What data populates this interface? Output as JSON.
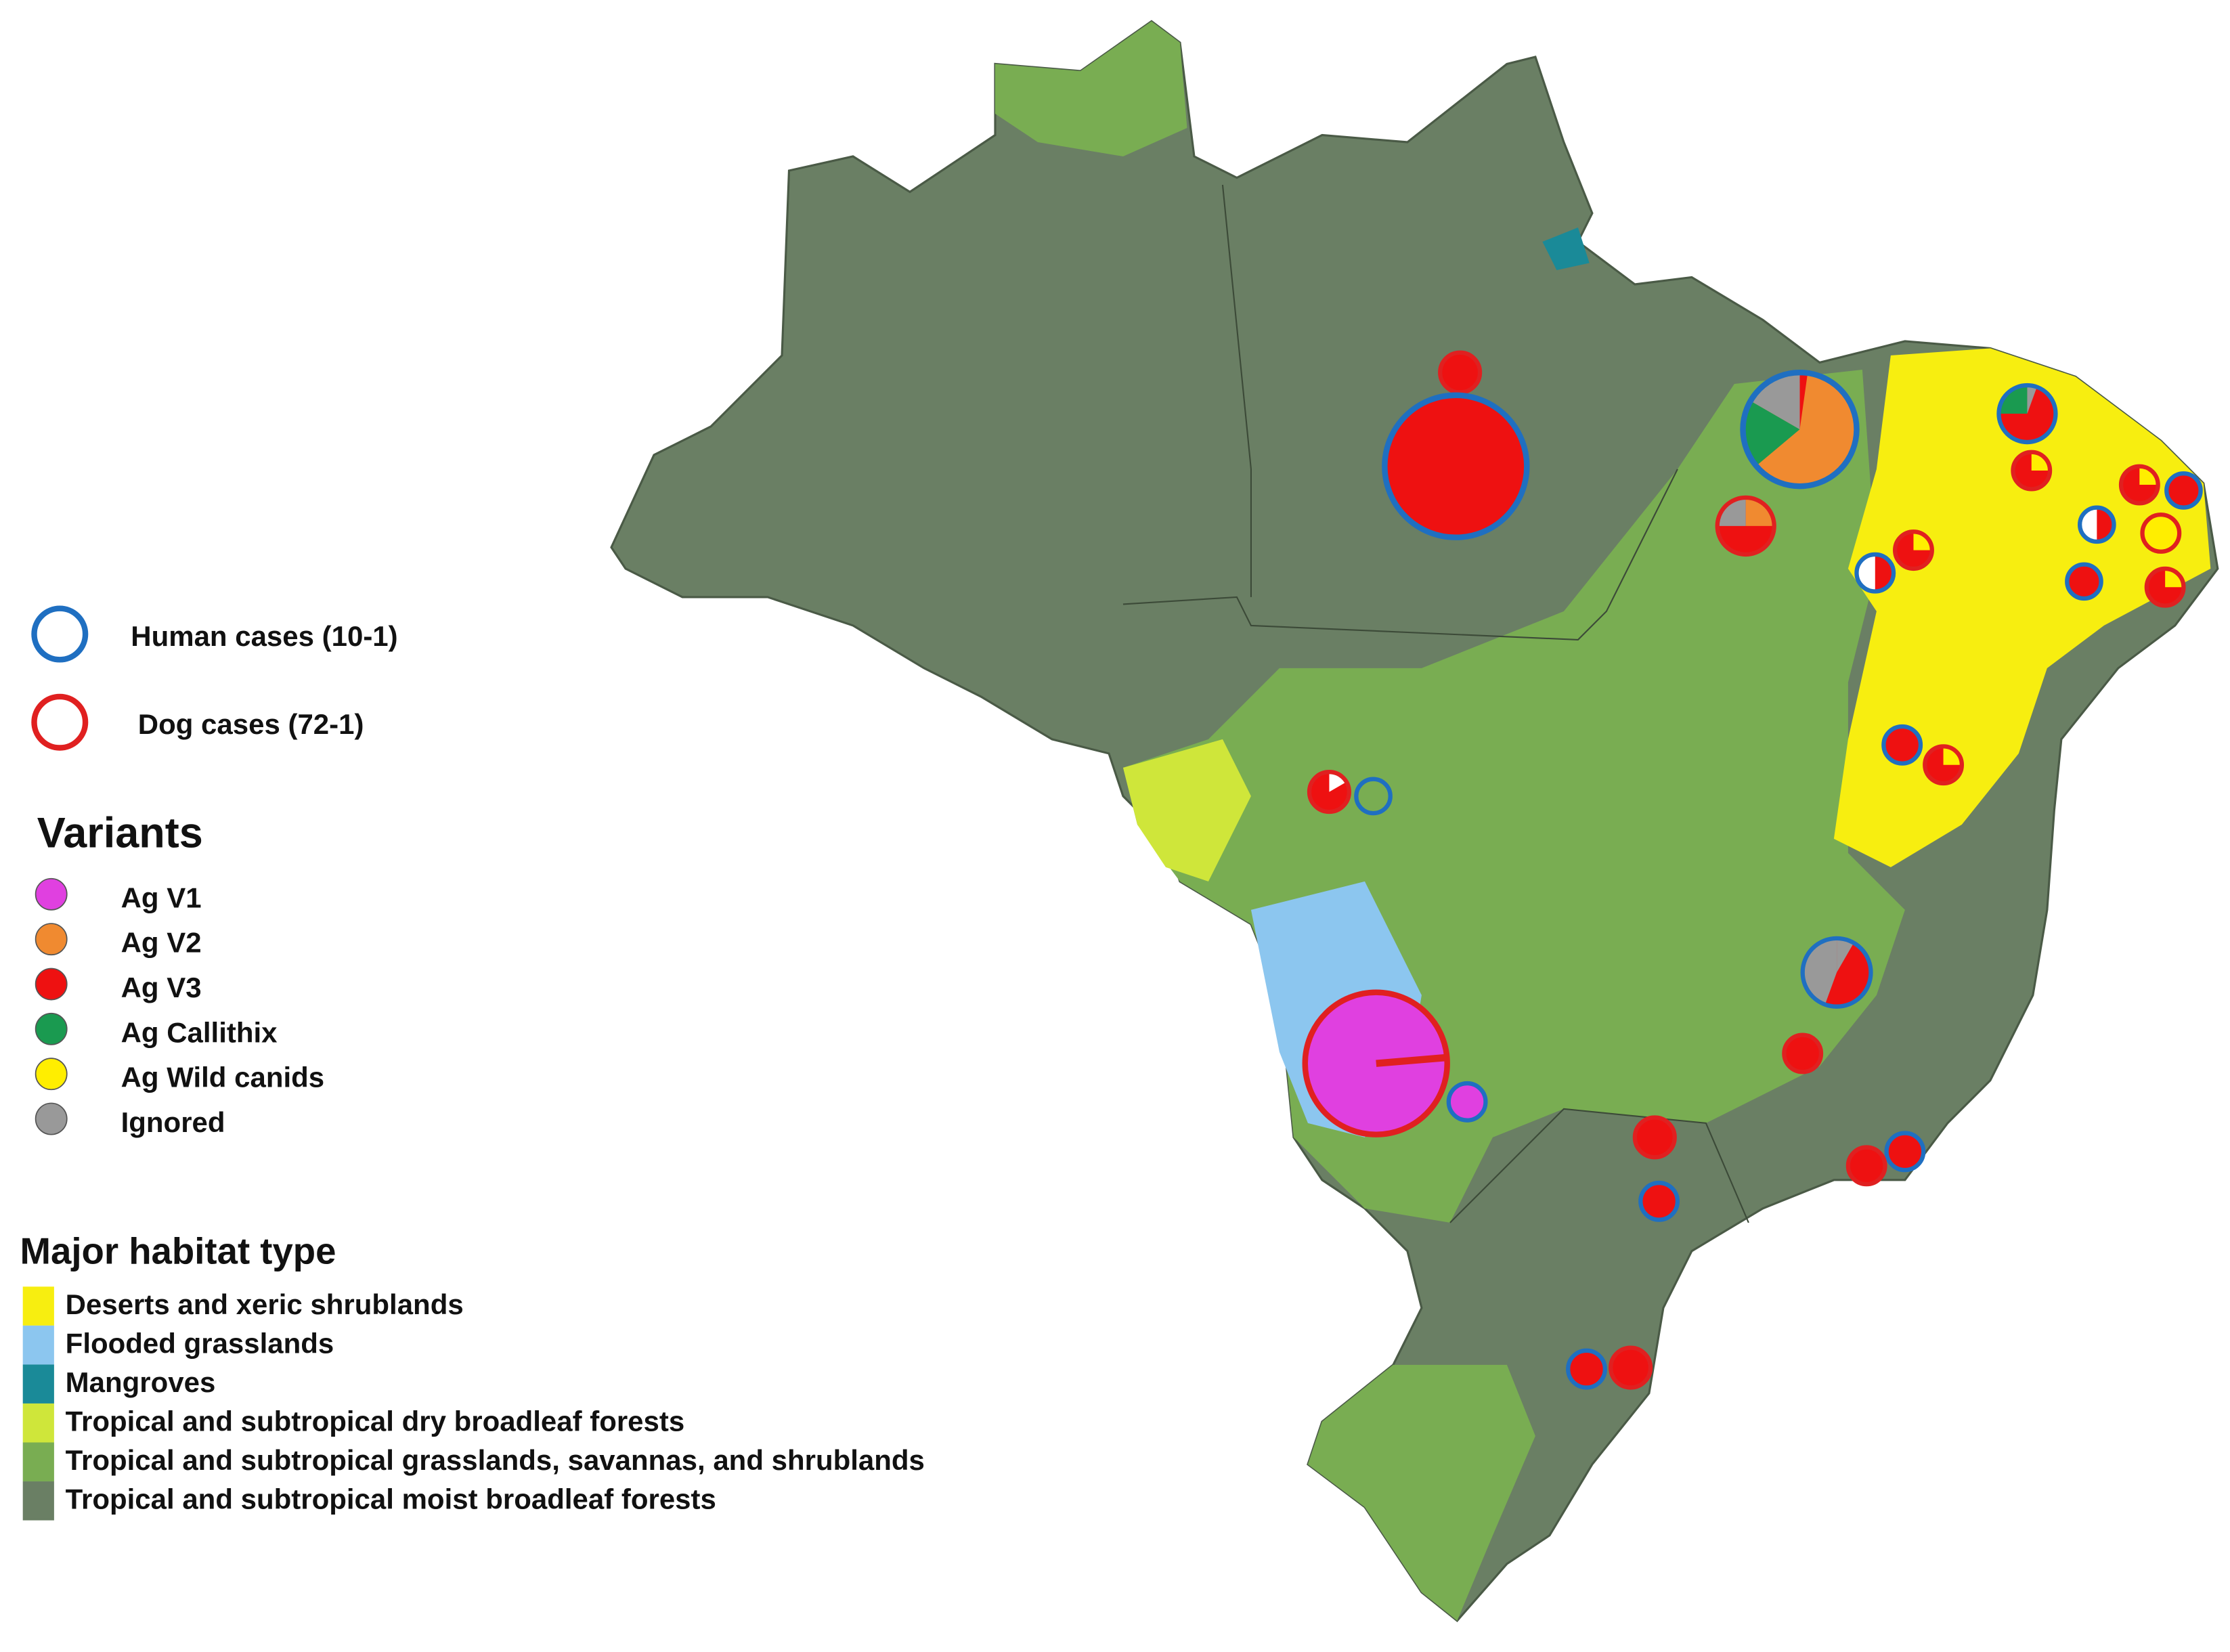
{
  "legend": {
    "cases": [
      {
        "label": "Human cases (10-1)",
        "color": "#1f6fc1"
      },
      {
        "label": "Dog cases (72-1)",
        "color": "#e02020"
      }
    ],
    "variants_title": "Variants",
    "variants": [
      {
        "label": "Ag V1",
        "color": "#e040e0"
      },
      {
        "label": "Ag V2",
        "color": "#f08a30"
      },
      {
        "label": "Ag V3",
        "color": "#ee1111"
      },
      {
        "label": "Ag Callithix",
        "color": "#1a9a50"
      },
      {
        "label": "Ag Wild canids",
        "color": "#ffee00"
      },
      {
        "label": "Ignored",
        "color": "#999999"
      }
    ],
    "habitat_title": "Major habitat type",
    "habitats": [
      {
        "label": "Deserts and xeric shrublands",
        "color": "#f7ee10"
      },
      {
        "label": "Flooded grasslands",
        "color": "#8cc6ef"
      },
      {
        "label": "Mangroves",
        "color": "#1a8a98"
      },
      {
        "label": "Tropical and subtropical dry broadleaf forests",
        "color": "#cfe63a"
      },
      {
        "label": "Tropical and subtropical grasslands, savannas, and shrublands",
        "color": "#79ad52"
      },
      {
        "label": "Tropical and subtropical moist broadleaf forests",
        "color": "#6a7f64"
      }
    ]
  }
}
